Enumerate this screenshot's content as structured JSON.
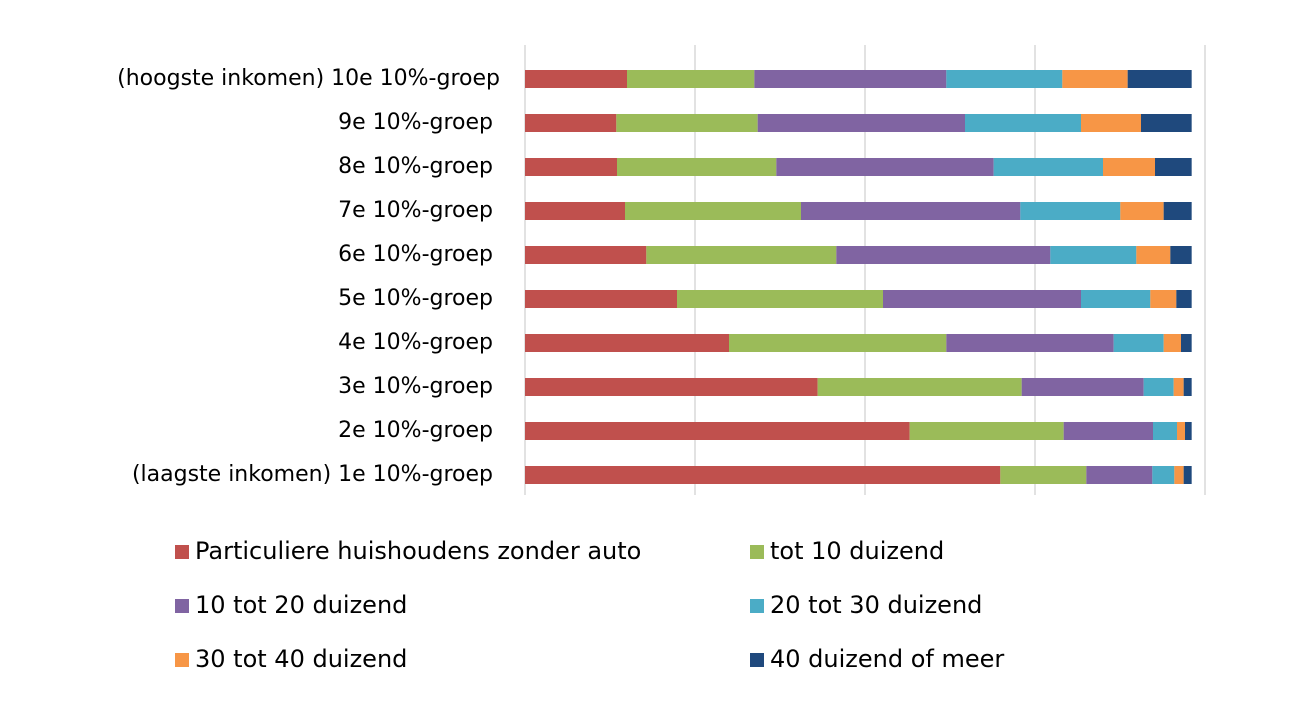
{
  "chart_data": {
    "type": "stacked_bar_horizontal",
    "categories": [
      "(hoogste inkomen) 10e 10%-groep",
      "9e 10%-groep",
      "8e 10%-groep",
      "7e 10%-groep",
      "6e 10%-groep",
      "5e 10%-groep",
      "4e 10%-groep",
      "3e 10%-groep",
      "2e 10%-groep",
      "(laagste inkomen) 1e 10%-groep"
    ],
    "series": [
      {
        "name": "Particuliere huishoudens zonder auto",
        "color": "#c0504d",
        "values": [
          15.3,
          13.7,
          13.8,
          15.0,
          18.2,
          22.8,
          30.6,
          43.9,
          57.7,
          71.3
        ]
      },
      {
        "name": "tot 10 duizend",
        "color": "#9bbb59",
        "values": [
          19.1,
          21.2,
          23.9,
          26.4,
          28.5,
          30.9,
          32.6,
          30.6,
          23.1,
          12.9
        ]
      },
      {
        "name": "10 tot 20 duizend",
        "color": "#8064a2",
        "values": [
          28.8,
          31.1,
          32.6,
          32.9,
          32.1,
          29.7,
          25.1,
          18.3,
          13.4,
          9.9
        ]
      },
      {
        "name": "20 tot 30 duizend",
        "color": "#4bacc6",
        "values": [
          17.4,
          17.4,
          16.4,
          15.0,
          12.9,
          10.4,
          7.5,
          4.5,
          3.6,
          3.3
        ]
      },
      {
        "name": "30 tot 40 duizend",
        "color": "#f79646",
        "values": [
          9.8,
          9.0,
          7.8,
          6.5,
          5.1,
          3.9,
          2.6,
          1.5,
          1.2,
          1.4
        ]
      },
      {
        "name": "40 duizend of meer",
        "color": "#1f497d",
        "values": [
          9.6,
          7.6,
          5.5,
          4.2,
          3.2,
          2.3,
          1.6,
          1.2,
          1.0,
          1.2
        ]
      }
    ],
    "xlim": [
      0,
      102
    ],
    "xticks": [
      0,
      25.5,
      51,
      76.5,
      102
    ],
    "grid": true
  }
}
